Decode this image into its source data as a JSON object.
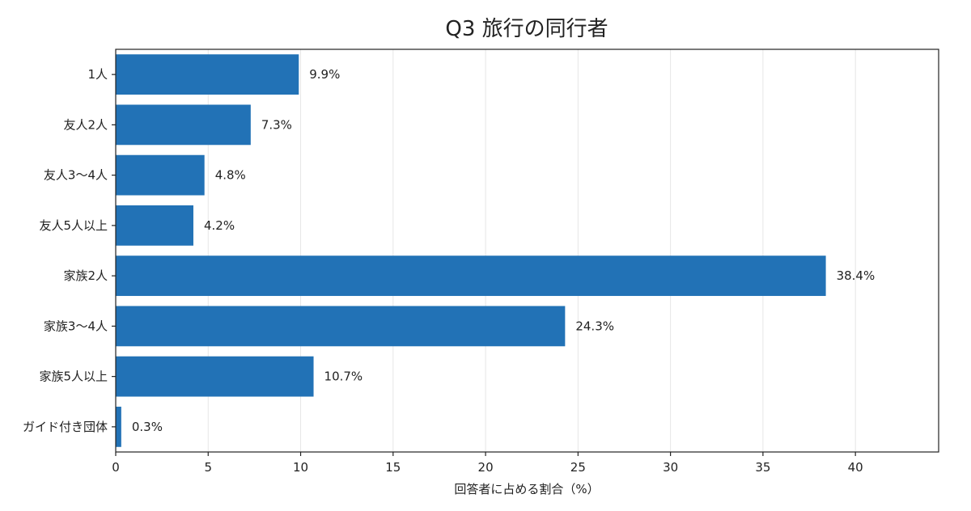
{
  "chart_data": {
    "type": "bar",
    "orientation": "horizontal",
    "title": "Q3 旅行の同行者",
    "xlabel": "回答者に占める割合（%）",
    "ylabel": "",
    "categories": [
      "1人",
      "友人2人",
      "友人3〜4人",
      "友人5人以上",
      "家族2人",
      "家族3〜4人",
      "家族5人以上",
      "ガイド付き団体"
    ],
    "values": [
      9.9,
      7.3,
      4.8,
      4.2,
      38.4,
      24.3,
      10.7,
      0.3
    ],
    "data_labels": [
      "9.9%",
      "7.3%",
      "4.8%",
      "4.2%",
      "38.4%",
      "24.3%",
      "10.7%",
      "0.3%"
    ],
    "xlim": [
      0,
      44.5
    ],
    "x_ticks": [
      0,
      5,
      10,
      15,
      20,
      25,
      30,
      35,
      40
    ],
    "grid": true,
    "bar_color": "#2272b6"
  }
}
